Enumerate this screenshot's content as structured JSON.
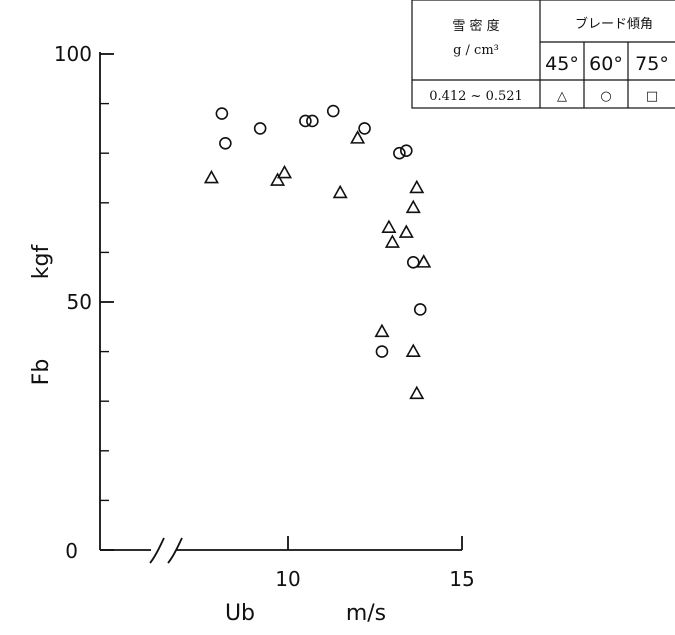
{
  "chart_data": {
    "type": "scatter",
    "title": "",
    "xlabel": "Ub",
    "xunit": "m/s",
    "ylabel": "Fb",
    "yunit": "kgf",
    "xlim": [
      6.5,
      15
    ],
    "ylim": [
      0,
      100
    ],
    "x_axis_break": true,
    "x_ticks": [
      10,
      15
    ],
    "x_tick_labels": [
      "10",
      "15"
    ],
    "y_ticks": [
      0,
      50,
      100
    ],
    "y_tick_labels": [
      "0",
      "50",
      "100"
    ],
    "y_minor_ticks": [
      10,
      20,
      30,
      40,
      60,
      70,
      80,
      90
    ],
    "grid": false,
    "legend": {
      "placement": "top-right",
      "density_header": "雪 密 度",
      "density_unit": "g / cm³",
      "density_value": "0.412 ~ 0.521",
      "angle_header": "ブレード傾角",
      "angles": [
        "45°",
        "60°",
        "75°"
      ],
      "symbols": [
        "△",
        "○",
        "□"
      ]
    },
    "series": [
      {
        "marker": "triangle",
        "angle": "45°",
        "points": [
          [
            7.8,
            75
          ],
          [
            9.7,
            74.5
          ],
          [
            9.9,
            76
          ],
          [
            11.5,
            72
          ],
          [
            12.0,
            83
          ],
          [
            12.9,
            65
          ],
          [
            13.0,
            62
          ],
          [
            13.4,
            64
          ],
          [
            13.6,
            69
          ],
          [
            13.7,
            73
          ],
          [
            13.9,
            58
          ],
          [
            12.7,
            44
          ],
          [
            13.6,
            40
          ],
          [
            13.7,
            31.5
          ]
        ]
      },
      {
        "marker": "circle",
        "angle": "60°",
        "points": [
          [
            8.1,
            88
          ],
          [
            8.2,
            82
          ],
          [
            9.2,
            85
          ],
          [
            10.5,
            86.5
          ],
          [
            10.7,
            86.5
          ],
          [
            11.3,
            88.5
          ],
          [
            12.2,
            85
          ],
          [
            13.2,
            80
          ],
          [
            13.4,
            80.5
          ],
          [
            13.6,
            58
          ],
          [
            13.8,
            48.5
          ],
          [
            12.7,
            40
          ]
        ]
      },
      {
        "marker": "square",
        "angle": "75°",
        "points": []
      }
    ]
  }
}
